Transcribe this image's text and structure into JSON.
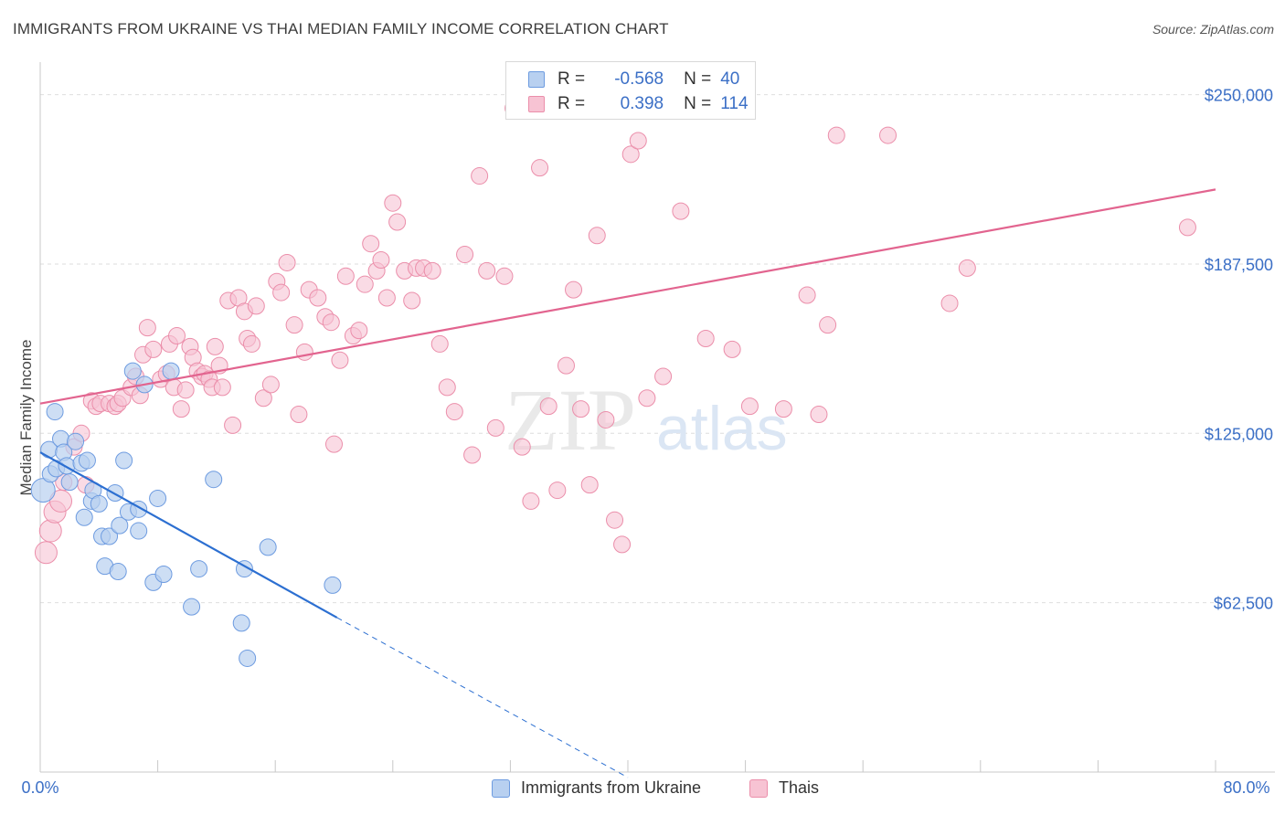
{
  "title": "IMMIGRANTS FROM UKRAINE VS THAI MEDIAN FAMILY INCOME CORRELATION CHART",
  "source": "Source: ZipAtlas.com",
  "watermark": {
    "zip": "ZIP",
    "atlas": "atlas"
  },
  "legend": {
    "ukraine": {
      "r_label": "R =",
      "r_value": "-0.568",
      "n_label": "N =",
      "n_value": "40"
    },
    "thai": {
      "r_label": "R =",
      "r_value": "0.398",
      "n_label": "N =",
      "n_value": "114"
    }
  },
  "bottom_legend": {
    "ukraine": "Immigrants from Ukraine",
    "thai": "Thais"
  },
  "colors": {
    "ukraine_fill": "#b8d0f0",
    "ukraine_stroke": "#6d9be0",
    "ukraine_line": "#2c6fd1",
    "thai_fill": "#f7c3d3",
    "thai_stroke": "#eb8eaa",
    "thai_line": "#e2648f",
    "axis_text": "#3b6fc6",
    "grid": "#dedede"
  },
  "chart_data": {
    "type": "scatter",
    "title": "IMMIGRANTS FROM UKRAINE VS THAI MEDIAN FAMILY INCOME CORRELATION CHART",
    "xlabel": "",
    "ylabel": "Median Family Income",
    "xlim": [
      0,
      80
    ],
    "ylim": [
      0,
      262000
    ],
    "x_tick_labels": [
      "0.0%",
      "80.0%"
    ],
    "y_ticks": [
      62500,
      125000,
      187500,
      250000
    ],
    "y_tick_labels": [
      "$62,500",
      "$125,000",
      "$187,500",
      "$250,000"
    ],
    "series": [
      {
        "name": "Immigrants from Ukraine",
        "r": -0.568,
        "n": 40,
        "trend": {
          "x0": 0,
          "y0": 118000,
          "x1": 20.2,
          "y1": 57000,
          "dash_to_x": 40,
          "dash_to_y": -2000
        },
        "points": [
          [
            0.2,
            104000
          ],
          [
            0.6,
            119000
          ],
          [
            0.7,
            110000
          ],
          [
            1.0,
            133000
          ],
          [
            1.1,
            112000
          ],
          [
            1.4,
            123000
          ],
          [
            1.6,
            118000
          ],
          [
            1.8,
            113000
          ],
          [
            2.0,
            107000
          ],
          [
            2.4,
            122000
          ],
          [
            2.8,
            114000
          ],
          [
            3.2,
            115000
          ],
          [
            3.0,
            94000
          ],
          [
            3.5,
            100000
          ],
          [
            3.6,
            104000
          ],
          [
            4.0,
            99000
          ],
          [
            4.2,
            87000
          ],
          [
            4.4,
            76000
          ],
          [
            4.7,
            87000
          ],
          [
            5.1,
            103000
          ],
          [
            5.3,
            74000
          ],
          [
            5.4,
            91000
          ],
          [
            5.7,
            115000
          ],
          [
            6.0,
            96000
          ],
          [
            6.3,
            148000
          ],
          [
            6.7,
            89000
          ],
          [
            6.7,
            97000
          ],
          [
            7.1,
            143000
          ],
          [
            7.7,
            70000
          ],
          [
            8.0,
            101000
          ],
          [
            8.4,
            73000
          ],
          [
            8.9,
            148000
          ],
          [
            10.3,
            61000
          ],
          [
            10.8,
            75000
          ],
          [
            11.8,
            108000
          ],
          [
            13.7,
            55000
          ],
          [
            13.9,
            75000
          ],
          [
            14.1,
            42000
          ],
          [
            15.5,
            83000
          ],
          [
            19.9,
            69000
          ]
        ]
      },
      {
        "name": "Thais",
        "r": 0.398,
        "n": 114,
        "trend": {
          "x0": 0,
          "y0": 136000,
          "x1": 80,
          "y1": 215000
        },
        "points": [
          [
            0.4,
            81000
          ],
          [
            0.7,
            89000
          ],
          [
            1.0,
            96000
          ],
          [
            1.4,
            100000
          ],
          [
            1.6,
            107000
          ],
          [
            2.3,
            120000
          ],
          [
            2.8,
            125000
          ],
          [
            3.1,
            106000
          ],
          [
            3.5,
            137000
          ],
          [
            3.8,
            135000
          ],
          [
            4.1,
            136000
          ],
          [
            4.7,
            136000
          ],
          [
            5.1,
            135000
          ],
          [
            5.3,
            136000
          ],
          [
            5.6,
            138000
          ],
          [
            6.2,
            142000
          ],
          [
            6.5,
            146000
          ],
          [
            6.8,
            139000
          ],
          [
            7.0,
            154000
          ],
          [
            7.3,
            164000
          ],
          [
            7.7,
            156000
          ],
          [
            8.2,
            145000
          ],
          [
            8.6,
            147000
          ],
          [
            8.8,
            158000
          ],
          [
            9.1,
            142000
          ],
          [
            9.3,
            161000
          ],
          [
            9.6,
            134000
          ],
          [
            9.9,
            141000
          ],
          [
            10.2,
            157000
          ],
          [
            10.4,
            153000
          ],
          [
            10.7,
            148000
          ],
          [
            11.0,
            146000
          ],
          [
            11.2,
            147000
          ],
          [
            11.5,
            145000
          ],
          [
            11.7,
            142000
          ],
          [
            11.9,
            157000
          ],
          [
            12.2,
            150000
          ],
          [
            12.4,
            142000
          ],
          [
            12.8,
            174000
          ],
          [
            13.1,
            128000
          ],
          [
            13.5,
            175000
          ],
          [
            13.9,
            170000
          ],
          [
            14.1,
            160000
          ],
          [
            14.4,
            158000
          ],
          [
            14.7,
            172000
          ],
          [
            15.2,
            138000
          ],
          [
            15.7,
            143000
          ],
          [
            16.1,
            181000
          ],
          [
            16.4,
            177000
          ],
          [
            16.8,
            188000
          ],
          [
            17.3,
            165000
          ],
          [
            17.6,
            132000
          ],
          [
            18.0,
            155000
          ],
          [
            18.3,
            178000
          ],
          [
            18.9,
            175000
          ],
          [
            19.4,
            168000
          ],
          [
            19.8,
            166000
          ],
          [
            20.0,
            121000
          ],
          [
            20.4,
            152000
          ],
          [
            20.8,
            183000
          ],
          [
            21.3,
            161000
          ],
          [
            21.7,
            163000
          ],
          [
            22.1,
            180000
          ],
          [
            22.5,
            195000
          ],
          [
            22.9,
            185000
          ],
          [
            23.2,
            189000
          ],
          [
            23.6,
            175000
          ],
          [
            24.0,
            210000
          ],
          [
            24.3,
            203000
          ],
          [
            24.8,
            185000
          ],
          [
            25.3,
            174000
          ],
          [
            25.6,
            186000
          ],
          [
            26.1,
            186000
          ],
          [
            26.7,
            185000
          ],
          [
            27.2,
            158000
          ],
          [
            27.7,
            142000
          ],
          [
            28.2,
            133000
          ],
          [
            28.9,
            191000
          ],
          [
            29.4,
            117000
          ],
          [
            29.9,
            220000
          ],
          [
            30.4,
            185000
          ],
          [
            31.0,
            127000
          ],
          [
            31.6,
            183000
          ],
          [
            32.2,
            245000
          ],
          [
            32.8,
            120000
          ],
          [
            33.4,
            100000
          ],
          [
            34.0,
            223000
          ],
          [
            34.6,
            135000
          ],
          [
            35.2,
            104000
          ],
          [
            35.8,
            150000
          ],
          [
            36.3,
            178000
          ],
          [
            36.8,
            134000
          ],
          [
            37.4,
            106000
          ],
          [
            37.9,
            198000
          ],
          [
            38.5,
            130000
          ],
          [
            39.1,
            93000
          ],
          [
            39.6,
            84000
          ],
          [
            40.2,
            228000
          ],
          [
            40.7,
            233000
          ],
          [
            41.3,
            138000
          ],
          [
            42.4,
            146000
          ],
          [
            43.6,
            207000
          ],
          [
            45.3,
            160000
          ],
          [
            47.1,
            156000
          ],
          [
            48.3,
            135000
          ],
          [
            50.6,
            134000
          ],
          [
            52.2,
            176000
          ],
          [
            53.0,
            132000
          ],
          [
            53.6,
            165000
          ],
          [
            54.2,
            235000
          ],
          [
            57.7,
            235000
          ],
          [
            61.9,
            173000
          ],
          [
            63.1,
            186000
          ],
          [
            78.1,
            201000
          ]
        ]
      }
    ]
  }
}
